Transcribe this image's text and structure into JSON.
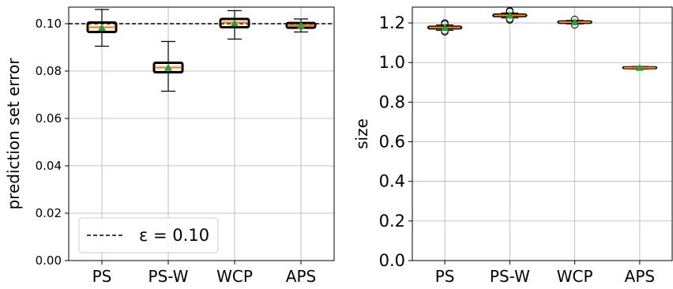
{
  "chart_data": [
    {
      "type": "boxplot",
      "categories": [
        "PS",
        "PS-W",
        "WCP",
        "APS"
      ],
      "ylabel": "prediction set error",
      "xlabel": "",
      "ylim": [
        0.0,
        0.107
      ],
      "yticks": [
        0.0,
        0.02,
        0.04,
        0.06,
        0.08,
        0.1
      ],
      "ytick_labels": [
        "0.00",
        "0.02",
        "0.04",
        "0.06",
        "0.08",
        "0.10"
      ],
      "grid": true,
      "legend": {
        "position": "bottom-left",
        "entries": [
          "ε = 0.10"
        ]
      },
      "reference_line": {
        "y": 0.1,
        "label": "ε = 0.10",
        "style": "dashed",
        "color": "#000000"
      },
      "boxes": [
        {
          "category": "PS",
          "whisker_low": 0.0905,
          "q1": 0.0965,
          "median": 0.0985,
          "q3": 0.1005,
          "whisker_high": 0.106,
          "mean": 0.0983
        },
        {
          "category": "PS-W",
          "whisker_low": 0.0715,
          "q1": 0.0795,
          "median": 0.0815,
          "q3": 0.0835,
          "whisker_high": 0.0925,
          "mean": 0.0815
        },
        {
          "category": "WCP",
          "whisker_low": 0.0935,
          "q1": 0.0985,
          "median": 0.1005,
          "q3": 0.102,
          "whisker_high": 0.1055,
          "mean": 0.1002
        },
        {
          "category": "APS",
          "whisker_low": 0.0965,
          "q1": 0.0983,
          "median": 0.0993,
          "q3": 0.1003,
          "whisker_high": 0.102,
          "mean": 0.0993
        }
      ]
    },
    {
      "type": "boxplot",
      "categories": [
        "PS",
        "PS-W",
        "WCP",
        "APS"
      ],
      "ylabel": "size",
      "xlabel": "",
      "ylim": [
        0.0,
        1.28
      ],
      "yticks": [
        0.0,
        0.2,
        0.4,
        0.6,
        0.8,
        1.0,
        1.2
      ],
      "ytick_labels": [
        "0.0",
        "0.2",
        "0.4",
        "0.6",
        "0.8",
        "1.0",
        "1.2"
      ],
      "grid": true,
      "boxes": [
        {
          "category": "PS",
          "whisker_low": 1.163,
          "q1": 1.172,
          "median": 1.177,
          "q3": 1.182,
          "whisker_high": 1.19,
          "mean": 1.177,
          "outliers": [
            1.155,
            1.16,
            1.195,
            1.2
          ]
        },
        {
          "category": "PS-W",
          "whisker_low": 1.225,
          "q1": 1.233,
          "median": 1.238,
          "q3": 1.243,
          "whisker_high": 1.25,
          "mean": 1.238,
          "outliers": [
            1.215,
            1.22,
            1.258,
            1.262
          ]
        },
        {
          "category": "WCP",
          "whisker_low": 1.195,
          "q1": 1.2,
          "median": 1.204,
          "q3": 1.208,
          "whisker_high": 1.213,
          "mean": 1.204,
          "outliers": [
            1.19,
            1.218
          ]
        },
        {
          "category": "APS",
          "whisker_low": 0.968,
          "q1": 0.972,
          "median": 0.974,
          "q3": 0.977,
          "whisker_high": 0.98,
          "mean": 0.974,
          "outliers": []
        }
      ]
    }
  ],
  "colors": {
    "box_edge": "#000000",
    "median": "#ff7f0e",
    "mean_marker": "#2ca02c",
    "grid": "#b0b0b0",
    "axis": "#000000"
  }
}
